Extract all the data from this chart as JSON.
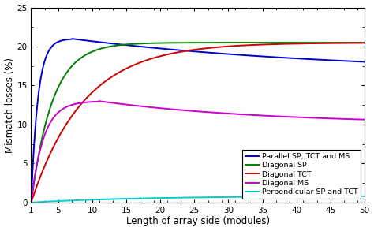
{
  "title": "",
  "xlabel": "Length of array side (modules)",
  "ylabel": "Mismatch losses (%)",
  "xlim": [
    1,
    50
  ],
  "ylim": [
    0,
    25
  ],
  "xticks": [
    1,
    5,
    10,
    15,
    20,
    25,
    30,
    35,
    40,
    45,
    50
  ],
  "yticks": [
    0,
    5,
    10,
    15,
    20,
    25
  ],
  "legend": [
    {
      "label": "Parallel SP, TCT and MS",
      "color": "#0000CD"
    },
    {
      "label": "Diagonal SP",
      "color": "#008000"
    },
    {
      "label": "Diagonal TCT",
      "color": "#CC0000"
    },
    {
      "label": "Diagonal MS",
      "color": "#CC00CC"
    },
    {
      "label": "Perpendicular SP and TCT",
      "color": "#00CCCC"
    }
  ],
  "background_color": "#ffffff",
  "figsize": [
    4.74,
    2.93
  ],
  "dpi": 100,
  "linewidth": 1.4
}
